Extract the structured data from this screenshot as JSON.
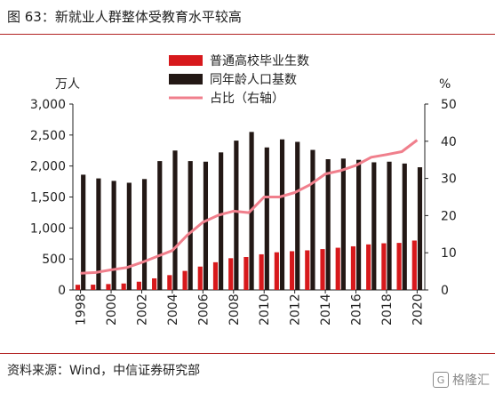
{
  "figure": {
    "title": "图 63：新就业人群整体受教育水平较高",
    "source": "资料来源：Wind，中信证券研究部",
    "watermark": "格隆汇"
  },
  "chart_data": {
    "type": "bar",
    "title": "",
    "x": [
      "1998",
      "1999",
      "2000",
      "2001",
      "2002",
      "2003",
      "2004",
      "2005",
      "2006",
      "2007",
      "2008",
      "2009",
      "2010",
      "2011",
      "2012",
      "2013",
      "2014",
      "2015",
      "2016",
      "2017",
      "2018",
      "2019",
      "2020"
    ],
    "x_tick_labels": [
      "1998",
      "2000",
      "2002",
      "2004",
      "2006",
      "2008",
      "2010",
      "2012",
      "2014",
      "2016",
      "2018",
      "2020"
    ],
    "y_left": {
      "unit": "万人",
      "ylim": [
        0,
        3000
      ],
      "ticks": [
        "0",
        "500",
        "1,000",
        "1,500",
        "2,000",
        "2,500",
        "3,000"
      ]
    },
    "y_right": {
      "unit": "%",
      "ylim": [
        0,
        50
      ],
      "ticks": [
        "0",
        "10",
        "20",
        "30",
        "40",
        "50"
      ]
    },
    "series": [
      {
        "name": "普通高校毕业生数",
        "kind": "bar",
        "axis": "left",
        "color": "#d7191c",
        "values": [
          83,
          85,
          95,
          104,
          133,
          187,
          239,
          307,
          377,
          447,
          512,
          531,
          575,
          608,
          625,
          639,
          659,
          681,
          704,
          735,
          753,
          759,
          797
        ]
      },
      {
        "name": "同年龄人口基数",
        "kind": "bar",
        "axis": "left",
        "color": "#231815",
        "values": [
          1860,
          1800,
          1760,
          1730,
          1790,
          2080,
          2250,
          2080,
          2070,
          2220,
          2410,
          2550,
          2300,
          2430,
          2390,
          2260,
          2110,
          2120,
          2100,
          2060,
          2070,
          2040,
          1980
        ]
      },
      {
        "name": "占比（右轴）",
        "kind": "line",
        "axis": "right",
        "color": "#f07f8c",
        "values": [
          4.5,
          4.7,
          5.4,
          6.0,
          7.4,
          9.0,
          10.6,
          14.8,
          18.2,
          20.1,
          21.2,
          20.8,
          25.0,
          25.0,
          26.2,
          28.3,
          31.2,
          32.1,
          33.5,
          35.7,
          36.4,
          37.2,
          40.3
        ]
      }
    ],
    "legend_position": "top-center",
    "grid": false
  }
}
